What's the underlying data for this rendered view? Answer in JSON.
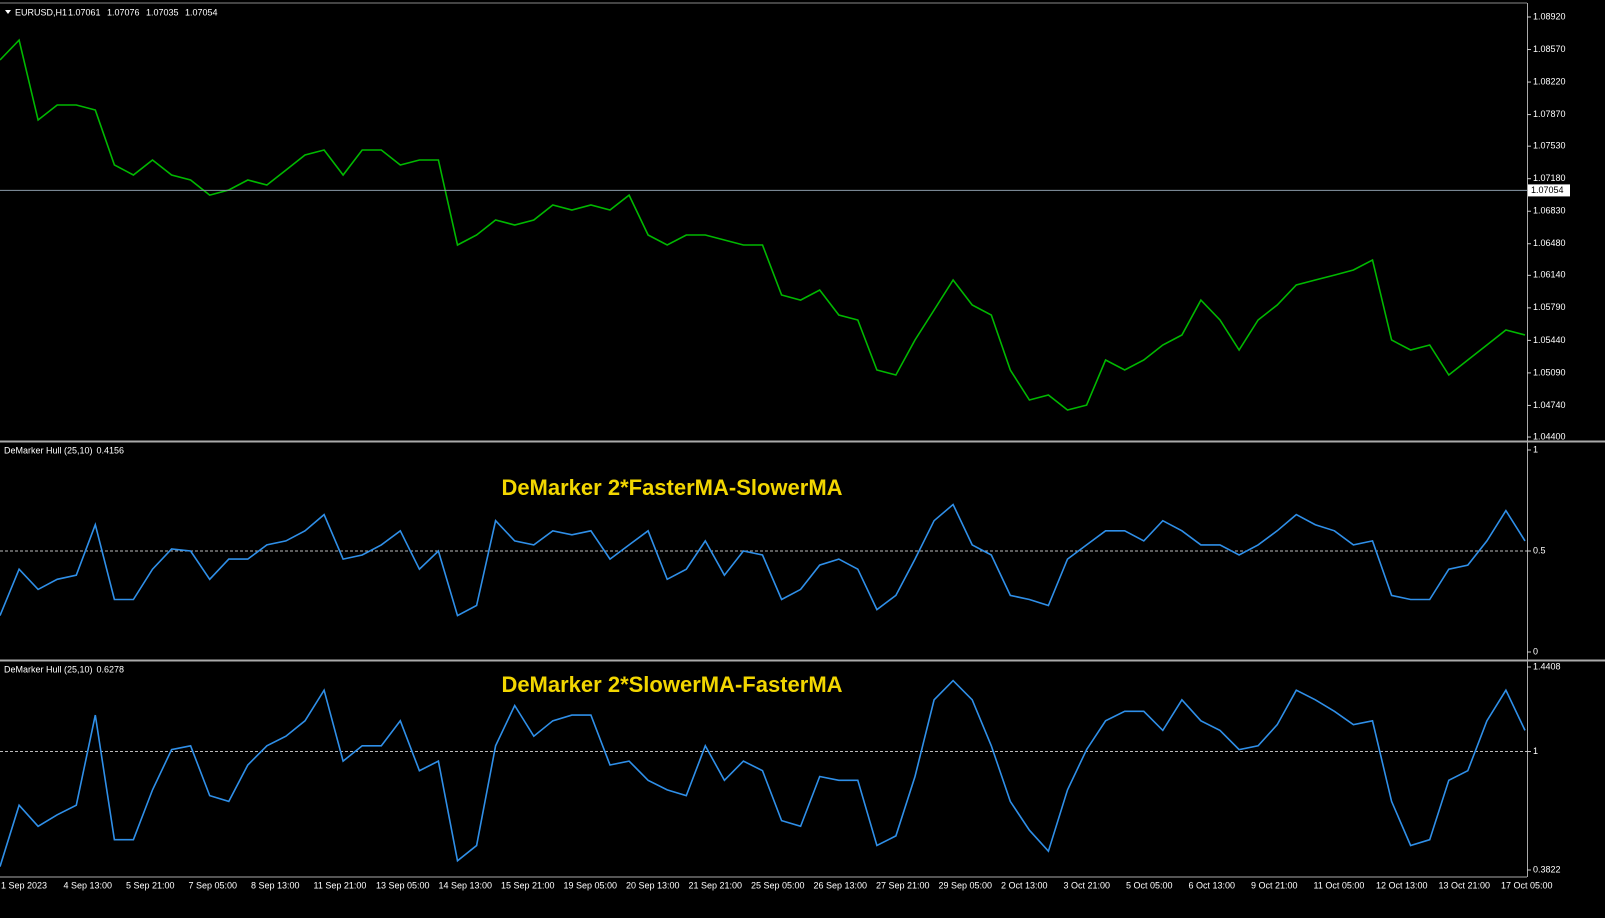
{
  "chart_data": [
    {
      "type": "line",
      "title": "EURUSD,H1",
      "ohlc": [
        1.07061,
        1.07076,
        1.07035,
        1.07054
      ],
      "color": "#00b800",
      "ylim": [
        1.04368,
        1.0906
      ],
      "yticks": [
        {
          "value": 1.0892,
          "label": "1.08920"
        },
        {
          "value": 1.0857,
          "label": "1.08570"
        },
        {
          "value": 1.0822,
          "label": "1.08220"
        },
        {
          "value": 1.0787,
          "label": "1.07870"
        },
        {
          "value": 1.0753,
          "label": "1.07530"
        },
        {
          "value": 1.0718,
          "label": "1.07180"
        },
        {
          "value": 1.0683,
          "label": "1.06830"
        },
        {
          "value": 1.0648,
          "label": "1.06480"
        },
        {
          "value": 1.0614,
          "label": "1.06140"
        },
        {
          "value": 1.0579,
          "label": "1.05790"
        },
        {
          "value": 1.0544,
          "label": "1.05440"
        },
        {
          "value": 1.0509,
          "label": "1.05090"
        },
        {
          "value": 1.0474,
          "label": "1.04740"
        },
        {
          "value": 1.044,
          "label": "1.04400"
        }
      ],
      "values": [
        1.08457,
        1.08672,
        1.07812,
        1.07973,
        1.07973,
        1.07919,
        1.07327,
        1.0722,
        1.07381,
        1.0722,
        1.07166,
        1.07004,
        1.07058,
        1.07166,
        1.07112,
        1.07273,
        1.07435,
        1.07489,
        1.0722,
        1.07489,
        1.07489,
        1.07327,
        1.07381,
        1.07381,
        1.06466,
        1.06574,
        1.06735,
        1.06682,
        1.06735,
        1.06897,
        1.06843,
        1.06897,
        1.06843,
        1.07004,
        1.06574,
        1.06466,
        1.06574,
        1.06574,
        1.0652,
        1.06466,
        1.06466,
        1.05928,
        1.05874,
        1.05982,
        1.05713,
        1.05659,
        1.05121,
        1.05067,
        1.05444,
        1.05767,
        1.0609,
        1.05821,
        1.05713,
        1.05121,
        1.04798,
        1.04852,
        1.04691,
        1.04744,
        1.05229,
        1.05121,
        1.05229,
        1.0539,
        1.05498,
        1.05874,
        1.05659,
        1.05336,
        1.05659,
        1.05821,
        1.06036,
        1.0609,
        1.06143,
        1.06197,
        1.06305,
        1.05444,
        1.05336,
        1.0539,
        1.05067,
        1.05229,
        1.0539,
        1.05552,
        1.05498
      ]
    },
    {
      "type": "line",
      "title": "DeMarker Hull (25,10)",
      "current": 0.4156,
      "annotation": "DeMarker 2*FasterMA-SlowerMA",
      "color": "#2f8fe8",
      "ylim": [
        0,
        1
      ],
      "yticks": [
        1,
        0.5,
        0
      ],
      "values": [
        0.18,
        0.41,
        0.31,
        0.36,
        0.38,
        0.63,
        0.26,
        0.26,
        0.41,
        0.51,
        0.5,
        0.36,
        0.46,
        0.46,
        0.53,
        0.55,
        0.6,
        0.68,
        0.46,
        0.48,
        0.53,
        0.6,
        0.41,
        0.5,
        0.18,
        0.23,
        0.65,
        0.55,
        0.53,
        0.6,
        0.58,
        0.6,
        0.46,
        0.53,
        0.6,
        0.36,
        0.41,
        0.55,
        0.38,
        0.5,
        0.48,
        0.26,
        0.31,
        0.43,
        0.46,
        0.41,
        0.21,
        0.28,
        0.46,
        0.65,
        0.73,
        0.53,
        0.48,
        0.28,
        0.26,
        0.23,
        0.46,
        0.53,
        0.6,
        0.6,
        0.55,
        0.65,
        0.6,
        0.53,
        0.53,
        0.48,
        0.53,
        0.6,
        0.68,
        0.63,
        0.6,
        0.53,
        0.55,
        0.28,
        0.26,
        0.26,
        0.41,
        0.43,
        0.55,
        0.7,
        0.55
      ]
    },
    {
      "type": "line",
      "title": "DeMarker Hull (25,10)",
      "current": 0.6278,
      "annotation": "DeMarker 2*SlowerMA-FasterMA",
      "color": "#2f8fe8",
      "ylim": [
        0.3822,
        1.4408
      ],
      "yticks": [
        1.4408,
        1,
        0.3822
      ],
      "values": [
        0.4,
        0.72,
        0.61,
        0.67,
        0.72,
        1.19,
        0.54,
        0.54,
        0.8,
        1.01,
        1.03,
        0.77,
        0.74,
        0.93,
        1.03,
        1.08,
        1.16,
        1.32,
        0.95,
        1.03,
        1.03,
        1.16,
        0.9,
        0.95,
        0.43,
        0.51,
        1.03,
        1.24,
        1.08,
        1.16,
        1.19,
        1.19,
        0.93,
        0.95,
        0.85,
        0.8,
        0.77,
        1.03,
        0.85,
        0.95,
        0.9,
        0.64,
        0.61,
        0.87,
        0.85,
        0.85,
        0.51,
        0.56,
        0.87,
        1.27,
        1.37,
        1.27,
        1.03,
        0.74,
        0.59,
        0.48,
        0.8,
        1.01,
        1.16,
        1.21,
        1.21,
        1.11,
        1.27,
        1.16,
        1.11,
        1.01,
        1.03,
        1.14,
        1.32,
        1.27,
        1.21,
        1.14,
        1.16,
        0.74,
        0.51,
        0.54,
        0.85,
        0.9,
        1.16,
        1.32,
        1.11
      ]
    }
  ],
  "time_labels": [
    "1 Sep 2023",
    "4 Sep 13:00",
    "5 Sep 21:00",
    "7 Sep 05:00",
    "8 Sep 13:00",
    "11 Sep 21:00",
    "13 Sep 05:00",
    "14 Sep 13:00",
    "15 Sep 21:00",
    "19 Sep 05:00",
    "20 Sep 13:00",
    "21 Sep 21:00",
    "25 Sep 05:00",
    "26 Sep 13:00",
    "27 Sep 21:00",
    "29 Sep 05:00",
    "2 Oct 13:00",
    "3 Oct 21:00",
    "5 Oct 05:00",
    "6 Oct 13:00",
    "9 Oct 21:00",
    "11 Oct 05:00",
    "12 Oct 13:00",
    "13 Oct 21:00",
    "17 Oct 05:00"
  ]
}
